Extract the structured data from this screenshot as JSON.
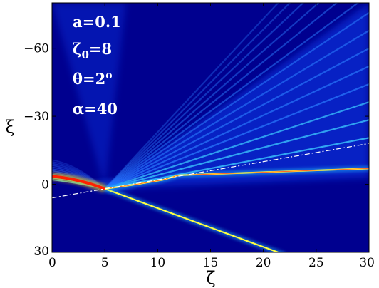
{
  "chart_data": {
    "type": "heatmap",
    "title": "",
    "xlabel": "ζ",
    "ylabel": "ξ",
    "xlim": [
      0,
      30
    ],
    "ylim": [
      30,
      -80
    ],
    "y_axis_inverted": true,
    "x_ticks": [
      0,
      5,
      10,
      15,
      20,
      25,
      30
    ],
    "x_tick_labels": [
      "0",
      "5",
      "10",
      "15",
      "20",
      "25",
      "30"
    ],
    "y_ticks": [
      -60,
      -30,
      0,
      30
    ],
    "y_tick_labels": [
      "−60",
      "−30",
      "0",
      "30"
    ],
    "colormap": "jet",
    "background_color": "#00008f",
    "annotations": [
      {
        "id": "a",
        "text": "a=0.1"
      },
      {
        "id": "zeta0",
        "base": "ζ",
        "sub": "0",
        "tail": "=8"
      },
      {
        "id": "theta",
        "base": "θ=2",
        "sup": "o"
      },
      {
        "id": "alpha",
        "text": "α=40"
      }
    ],
    "features": {
      "dash_dot_line": {
        "from": [
          0,
          6
        ],
        "to": [
          30,
          -18
        ],
        "color": "#ffffff"
      },
      "upper_beam": {
        "points": [
          [
            5,
            2
          ],
          [
            8,
            0
          ],
          [
            10.5,
            -2
          ],
          [
            12,
            -4
          ],
          [
            30,
            -7
          ]
        ],
        "color": "#ffff40"
      },
      "lower_beam": {
        "points": [
          [
            5,
            2
          ],
          [
            22,
            31
          ]
        ],
        "color": "#ffff40"
      },
      "initial_beam": {
        "points": [
          [
            0,
            -3.5
          ],
          [
            2.5,
            -2.5
          ],
          [
            5,
            2
          ]
        ],
        "color": "#ff2000"
      },
      "fringe_fan": {
        "origin": [
          5,
          2
        ],
        "count": 14,
        "slope_range": [
          -5.0,
          -0.9
        ]
      }
    }
  }
}
